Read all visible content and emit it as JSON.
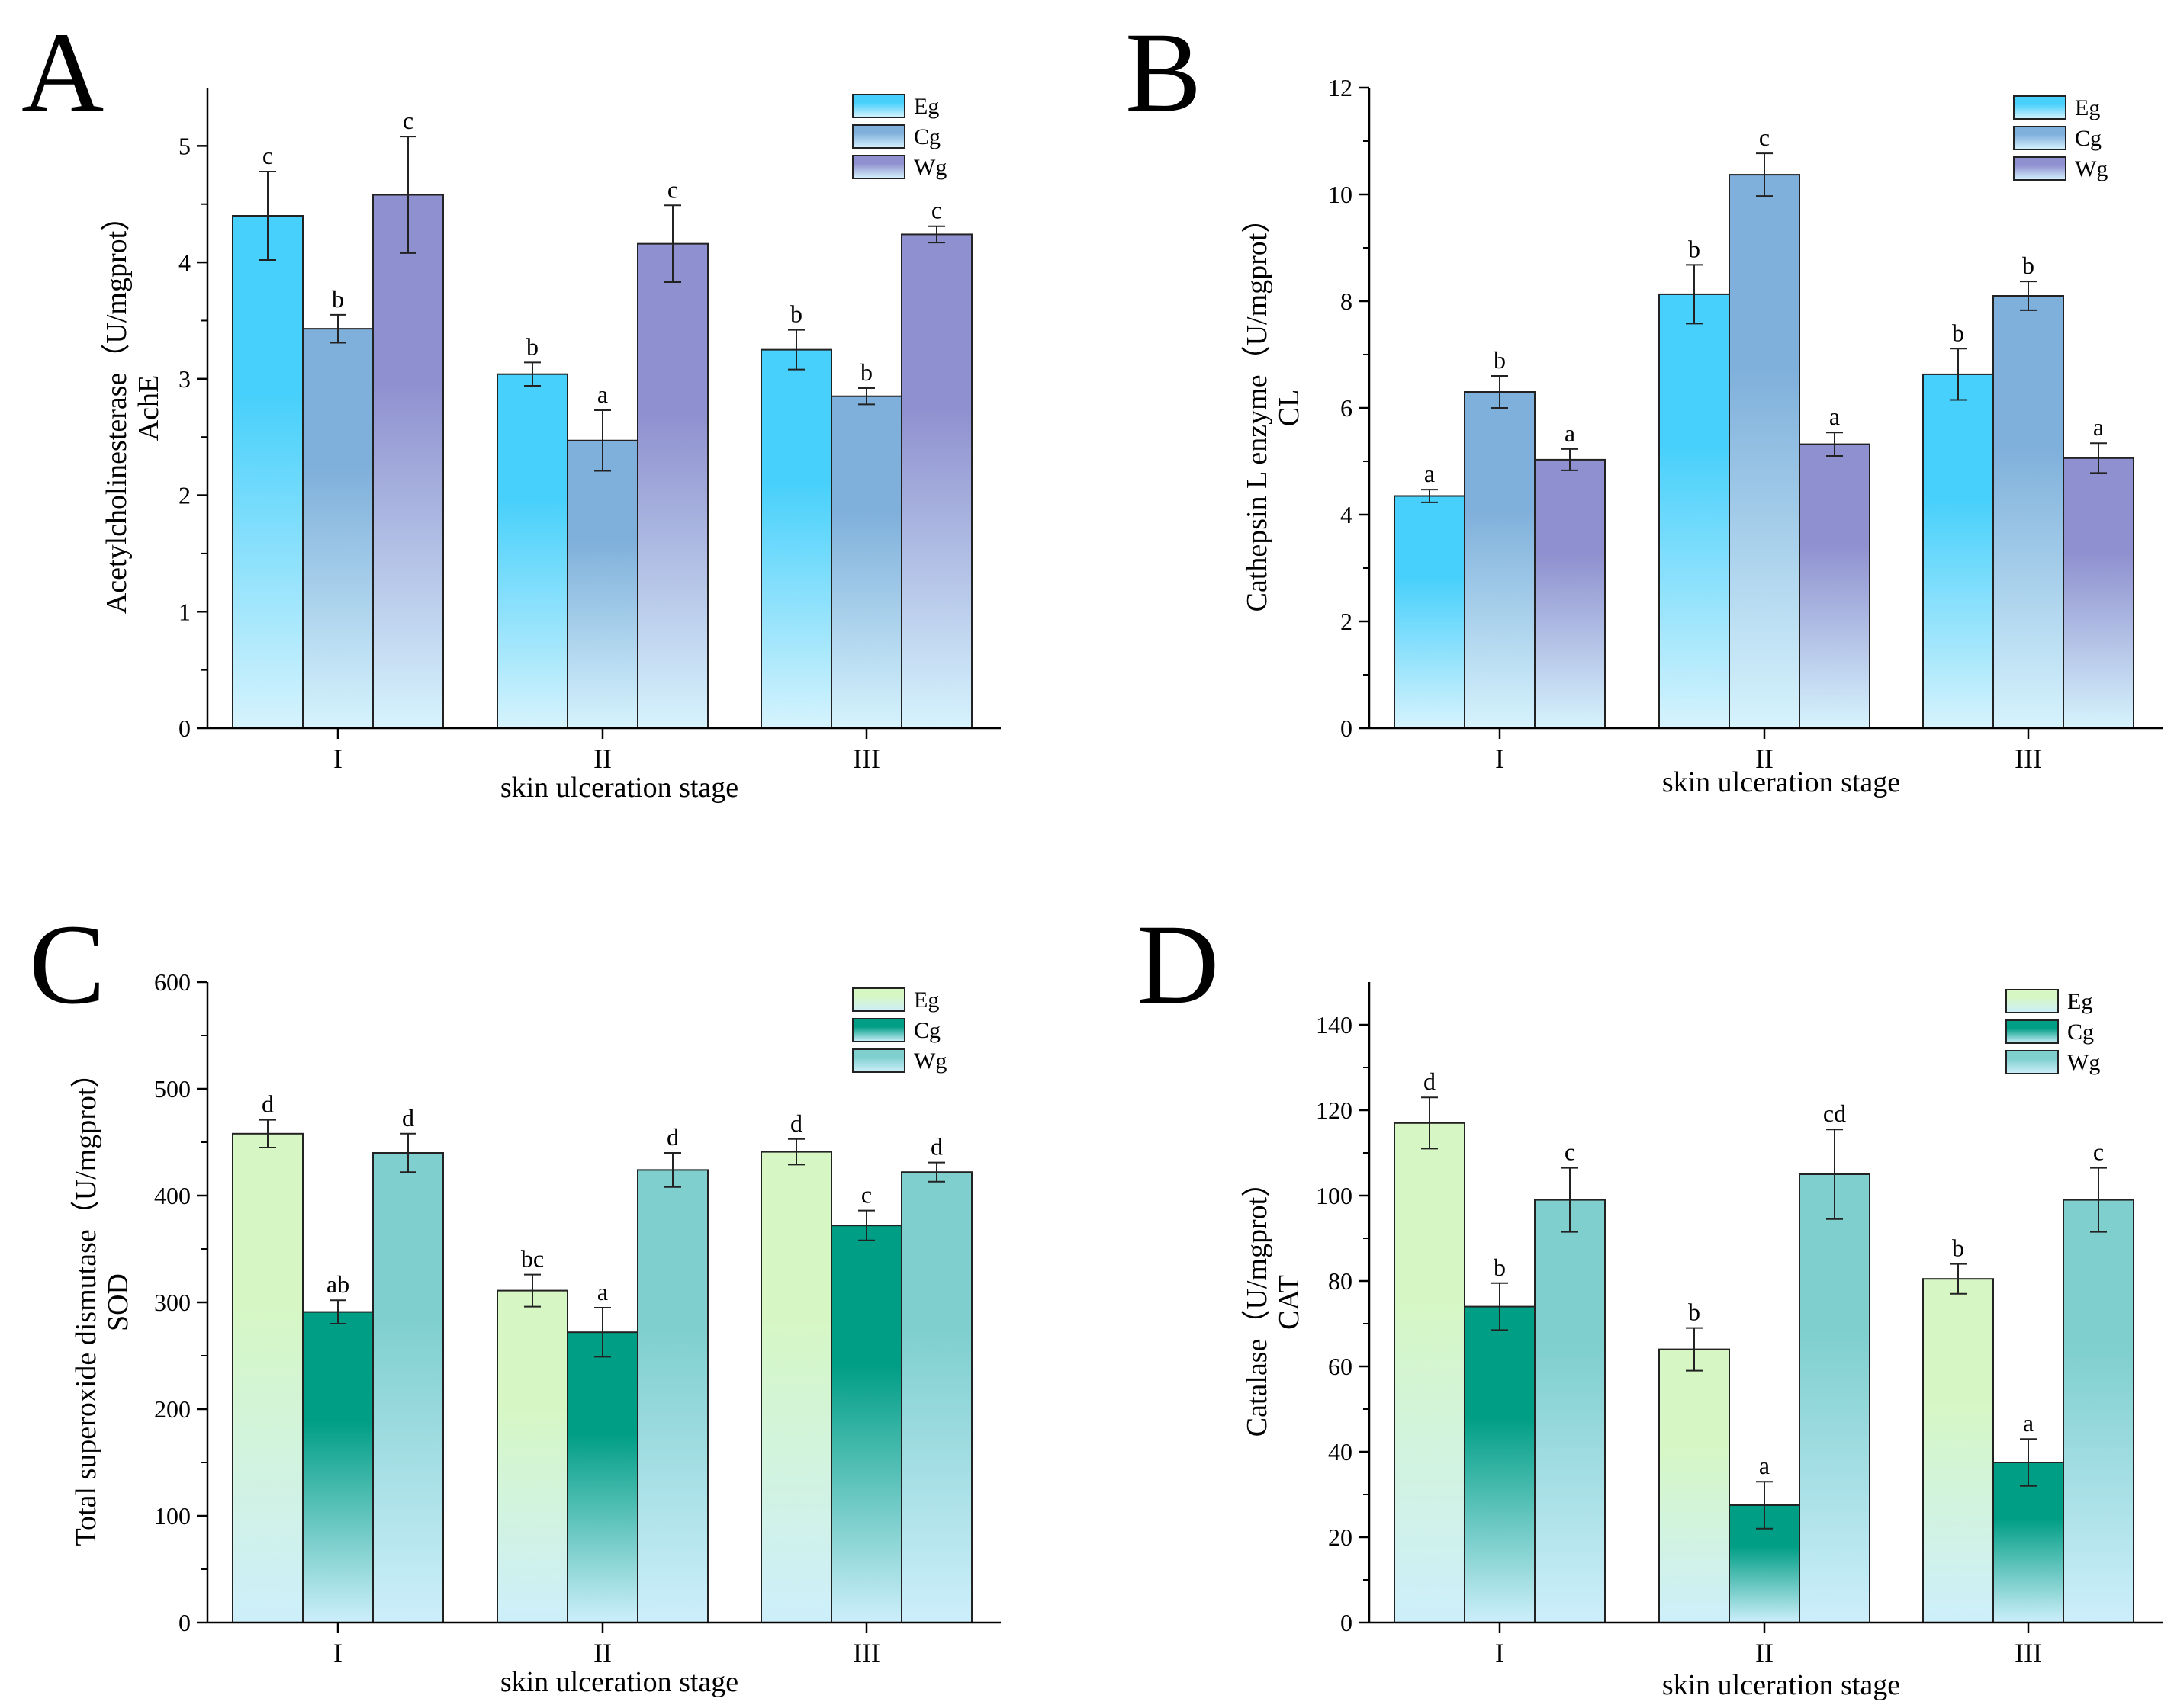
{
  "chart_data": [
    {
      "type": "bar",
      "panel_letter": "A",
      "title": "",
      "xlabel": "skin ulceration stage",
      "ylabel_line1": "Acetylcholinesterase（U/mgprot）",
      "ylabel_line2": "AchE",
      "ylim": [
        0,
        5.5
      ],
      "yticks": [
        "0",
        "1",
        "2",
        "3",
        "4",
        "5"
      ],
      "ytick_values": [
        0,
        1,
        2,
        3,
        4,
        5
      ],
      "categories": [
        "I",
        "II",
        "III"
      ],
      "series": [
        {
          "name": "Eg",
          "values": [
            4.4,
            3.04,
            3.25
          ],
          "errors": [
            0.38,
            0.1,
            0.17
          ],
          "letters": [
            "c",
            "b",
            "b"
          ],
          "gradient": [
            "#47d0fb",
            "#d6f3fd"
          ]
        },
        {
          "name": "Cg",
          "values": [
            3.43,
            2.47,
            2.85
          ],
          "errors": [
            0.12,
            0.26,
            0.07
          ],
          "letters": [
            "b",
            "a",
            "b"
          ],
          "gradient": [
            "#7fb0db",
            "#d6f3fd"
          ]
        },
        {
          "name": "Wg",
          "values": [
            4.58,
            4.16,
            4.24
          ],
          "errors": [
            0.5,
            0.33,
            0.07
          ],
          "letters": [
            "c",
            "c",
            "c"
          ],
          "gradient": [
            "#8f90cf",
            "#d6f3fd"
          ]
        }
      ]
    },
    {
      "type": "bar",
      "panel_letter": "B",
      "title": "",
      "xlabel": "skin ulceration stage",
      "ylabel_line1": "Cathepsin L enzyme（U/mgprot）",
      "ylabel_line2": "CL",
      "ylim": [
        0,
        12
      ],
      "yticks": [
        "0",
        "2",
        "4",
        "6",
        "8",
        "10",
        "12"
      ],
      "ytick_values": [
        0,
        2,
        4,
        6,
        8,
        10,
        12
      ],
      "categories": [
        "I",
        "II",
        "III"
      ],
      "series": [
        {
          "name": "Eg",
          "values": [
            4.35,
            8.13,
            6.63
          ],
          "errors": [
            0.12,
            0.55,
            0.48
          ],
          "letters": [
            "a",
            "b",
            "b"
          ],
          "gradient": [
            "#47d0fb",
            "#d6f3fd"
          ]
        },
        {
          "name": "Cg",
          "values": [
            6.3,
            10.37,
            8.1
          ],
          "errors": [
            0.3,
            0.4,
            0.27
          ],
          "letters": [
            "b",
            "c",
            "b"
          ],
          "gradient": [
            "#7fb0db",
            "#d6f3fd"
          ]
        },
        {
          "name": "Wg",
          "values": [
            5.03,
            5.32,
            5.06
          ],
          "errors": [
            0.2,
            0.22,
            0.28
          ],
          "letters": [
            "a",
            "a",
            "a"
          ],
          "gradient": [
            "#8f90cf",
            "#d6f3fd"
          ]
        }
      ]
    },
    {
      "type": "bar",
      "panel_letter": "C",
      "title": "",
      "xlabel": "skin ulceration stage",
      "ylabel_line1": "Total superoxide dismutase（U/mgprot）",
      "ylabel_line2": "SOD",
      "ylim": [
        0,
        600
      ],
      "yticks": [
        "0",
        "100",
        "200",
        "300",
        "400",
        "500",
        "600"
      ],
      "ytick_values": [
        0,
        100,
        200,
        300,
        400,
        500,
        600
      ],
      "categories": [
        "I",
        "II",
        "III"
      ],
      "series": [
        {
          "name": "Eg",
          "values": [
            458,
            311,
            441
          ],
          "errors": [
            13,
            15,
            12
          ],
          "letters": [
            "d",
            "bc",
            "d"
          ],
          "gradient": [
            "#d6f7c4",
            "#cdeffb"
          ]
        },
        {
          "name": "Cg",
          "values": [
            291,
            272,
            372
          ],
          "errors": [
            11,
            23,
            14
          ],
          "letters": [
            "ab",
            "a",
            "c"
          ],
          "gradient": [
            "#009e85",
            "#cdeffb"
          ]
        },
        {
          "name": "Wg",
          "values": [
            440,
            424,
            422
          ],
          "errors": [
            18,
            16,
            9
          ],
          "letters": [
            "d",
            "d",
            "d"
          ],
          "gradient": [
            "#7fcfcf",
            "#cdeffb"
          ]
        }
      ]
    },
    {
      "type": "bar",
      "panel_letter": "D",
      "title": "",
      "xlabel": "skin ulceration stage",
      "ylabel_line1": "Catalase（U/mgprot）",
      "ylabel_line2": "CAT",
      "ylim": [
        0,
        150
      ],
      "yticks": [
        "0",
        "20",
        "40",
        "60",
        "80",
        "100",
        "120",
        "140"
      ],
      "ytick_values": [
        0,
        20,
        40,
        60,
        80,
        100,
        120,
        140
      ],
      "categories": [
        "I",
        "II",
        "III"
      ],
      "series": [
        {
          "name": "Eg",
          "values": [
            117,
            64,
            80.5
          ],
          "errors": [
            6,
            5,
            3.5
          ],
          "letters": [
            "d",
            "b",
            "b"
          ],
          "gradient": [
            "#d6f7c4",
            "#cdeffb"
          ]
        },
        {
          "name": "Cg",
          "values": [
            74,
            27.5,
            37.5
          ],
          "errors": [
            5.5,
            5.5,
            5.5
          ],
          "letters": [
            "b",
            "a",
            "a"
          ],
          "gradient": [
            "#009e85",
            "#cdeffb"
          ]
        },
        {
          "name": "Wg",
          "values": [
            99,
            105,
            99
          ],
          "errors": [
            7.5,
            10.5,
            7.5
          ],
          "letters": [
            "c",
            "cd",
            "c"
          ],
          "gradient": [
            "#7fcfcf",
            "#cdeffb"
          ]
        }
      ]
    }
  ]
}
